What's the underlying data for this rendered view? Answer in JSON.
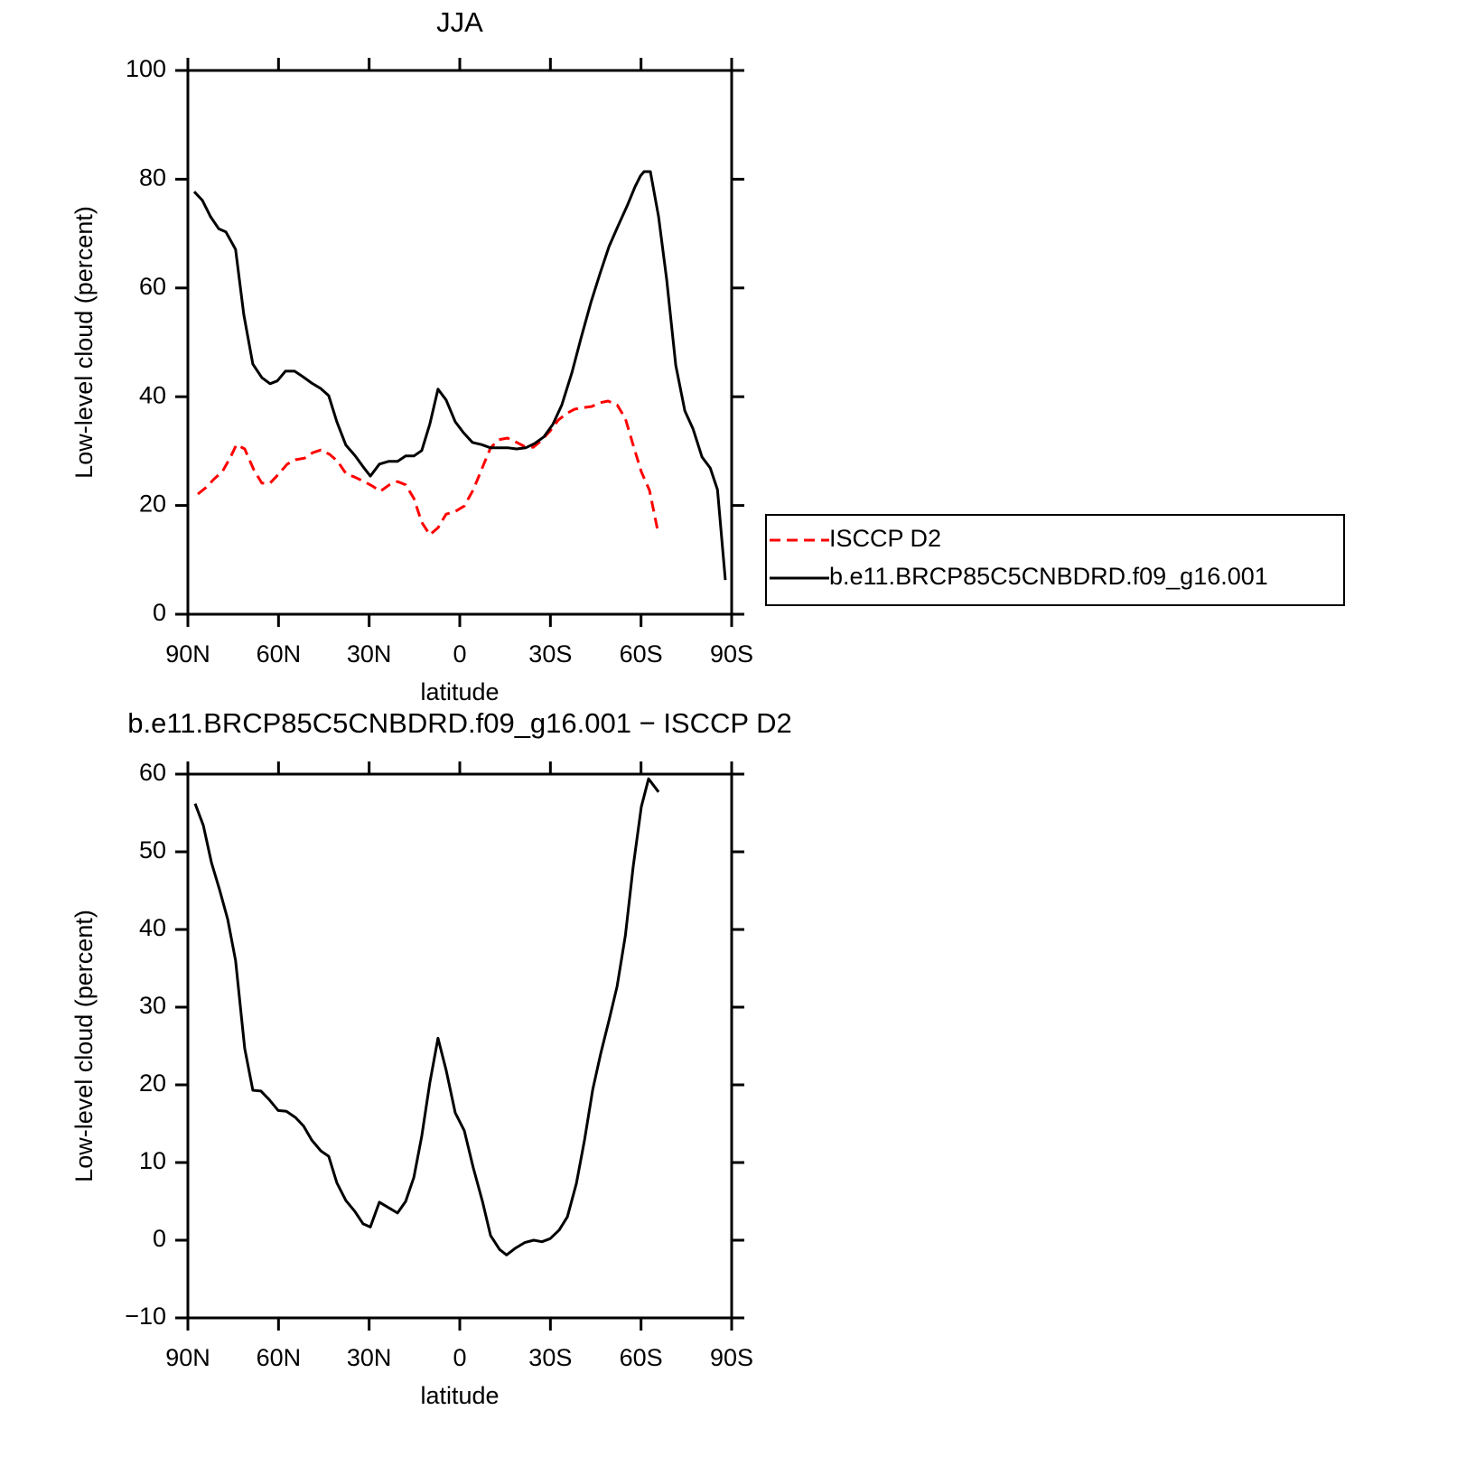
{
  "chart_data": [
    {
      "type": "line",
      "title": "JJA",
      "xlabel": "latitude",
      "ylabel": "Low-level cloud (percent)",
      "xlim": [
        90,
        -90
      ],
      "xticks": [
        {
          "value": 90,
          "label": "90N"
        },
        {
          "value": 60,
          "label": "60N"
        },
        {
          "value": 30,
          "label": "30N"
        },
        0,
        {
          "value": -30,
          "label": "30S"
        },
        {
          "value": -60,
          "label": "60S"
        },
        {
          "value": -90,
          "label": "90S"
        }
      ],
      "ylim": [
        0,
        100
      ],
      "yticks": [
        0,
        20,
        40,
        60,
        80,
        100
      ],
      "legend": "outside right",
      "series": [
        {
          "name": "ISCCP D2",
          "color": "#ff0000",
          "linestyle": "dashed",
          "x": [
            86.7,
            84.0,
            81.3,
            78.6,
            75.9,
            73.9,
            71.2,
            68.2,
            65.5,
            62.8,
            60.1,
            57.1,
            54.4,
            51.4,
            48.7,
            46.0,
            43.1,
            40.4,
            37.7,
            34.7,
            31.7,
            29.0,
            26.3,
            23.3,
            20.6,
            17.9,
            15.2,
            12.6,
            9.9,
            7.2,
            4.5,
            1.5,
            -1.5,
            -4.5,
            -7.2,
            -10.2,
            -12.9,
            -15.8,
            -18.5,
            -21.3,
            -24.3,
            -26.9,
            -29.9,
            -32.6,
            -35.3,
            -38.0,
            -41.0,
            -43.7,
            -46.4,
            -49.1,
            -52.1,
            -54.8,
            -57.4,
            -60.1,
            -62.8,
            -65.5
          ],
          "values": [
            22.1,
            23.3,
            24.9,
            26.2,
            28.9,
            31.2,
            30.4,
            26.6,
            24.1,
            24.1,
            25.7,
            27.6,
            28.4,
            28.7,
            29.7,
            30.2,
            29.4,
            28.1,
            25.9,
            25.2,
            24.4,
            23.6,
            22.6,
            23.8,
            24.4,
            23.8,
            21.3,
            16.9,
            14.6,
            15.9,
            18.4,
            18.9,
            19.9,
            22.9,
            26.6,
            30.6,
            32.1,
            32.4,
            31.7,
            30.9,
            30.7,
            31.9,
            33.7,
            35.7,
            36.9,
            37.7,
            38.0,
            38.2,
            38.9,
            39.2,
            38.5,
            36.0,
            31.1,
            26.2,
            22.8,
            15.4
          ]
        },
        {
          "name": "b.e11.BRCP85C5CNBDRD.f09_g16.001",
          "color": "#000000",
          "linestyle": "solid",
          "x": [
            87.9,
            85.2,
            82.5,
            79.8,
            77.4,
            74.2,
            71.5,
            68.5,
            65.5,
            62.8,
            60.4,
            57.7,
            54.7,
            52.0,
            49.0,
            46.0,
            43.4,
            40.7,
            37.7,
            34.7,
            31.7,
            29.6,
            26.6,
            23.6,
            20.6,
            17.9,
            15.2,
            12.6,
            9.9,
            7.2,
            4.5,
            1.5,
            -1.2,
            -4.2,
            -7.2,
            -10.2,
            -12.9,
            -16.1,
            -18.8,
            -21.8,
            -24.8,
            -27.8,
            -30.8,
            -33.8,
            -37.1,
            -40.1,
            -43.4,
            -46.4,
            -49.4,
            -52.4,
            -55.4,
            -58.0,
            -59.8,
            -61.0,
            -63.1,
            -65.8,
            -68.5,
            -71.5,
            -74.5,
            -77.2,
            -80.2,
            -82.9,
            -85.3,
            -87.9
          ],
          "values": [
            77.7,
            76.1,
            73.1,
            70.9,
            70.3,
            67.1,
            55.1,
            46.0,
            43.5,
            42.4,
            42.9,
            44.7,
            44.7,
            43.7,
            42.5,
            41.5,
            40.2,
            35.4,
            31.1,
            29.2,
            26.9,
            25.4,
            27.6,
            28.1,
            28.1,
            29.1,
            29.1,
            30.1,
            35.0,
            41.4,
            39.4,
            35.4,
            33.4,
            31.6,
            31.2,
            30.6,
            30.6,
            30.6,
            30.4,
            30.6,
            31.4,
            32.6,
            34.9,
            38.5,
            44.4,
            50.7,
            57.3,
            62.6,
            67.6,
            71.4,
            75.1,
            78.6,
            80.6,
            81.4,
            81.4,
            73.1,
            61.5,
            45.8,
            37.4,
            34.1,
            28.9,
            26.9,
            22.9,
            6.3
          ]
        }
      ]
    },
    {
      "type": "line",
      "title": "b.e11.BRCP85C5CNBDRD.f09_g16.001 − ISCCP D2",
      "xlabel": "latitude",
      "ylabel": "Low-level cloud (percent)",
      "xlim": [
        90,
        -90
      ],
      "xticks": [
        {
          "value": 90,
          "label": "90N"
        },
        {
          "value": 60,
          "label": "60N"
        },
        {
          "value": 30,
          "label": "30N"
        },
        0,
        {
          "value": -30,
          "label": "30S"
        },
        {
          "value": -60,
          "label": "60S"
        },
        {
          "value": -90,
          "label": "90S"
        }
      ],
      "ylim": [
        -10,
        60
      ],
      "yticks": [
        {
          "value": -10,
          "label": "−10"
        },
        0,
        10,
        20,
        30,
        40,
        50,
        60
      ],
      "series": [
        {
          "color": "#000000",
          "linestyle": "solid",
          "x": [
            87.6,
            84.9,
            82.2,
            79.5,
            76.8,
            74.2,
            71.2,
            68.5,
            65.8,
            63.1,
            60.1,
            57.4,
            54.4,
            51.7,
            49.0,
            46.0,
            43.4,
            40.7,
            37.7,
            34.7,
            32.0,
            29.6,
            26.6,
            23.6,
            20.6,
            17.9,
            15.2,
            12.6,
            9.9,
            7.2,
            4.5,
            1.5,
            -1.5,
            -4.5,
            -7.5,
            -10.2,
            -13.2,
            -15.5,
            -18.5,
            -21.5,
            -24.5,
            -27.2,
            -29.9,
            -32.9,
            -35.6,
            -38.6,
            -41.3,
            -44.0,
            -46.7,
            -49.4,
            -52.1,
            -54.8,
            -57.4,
            -60.1,
            -62.5,
            -65.8
          ],
          "values": [
            56.2,
            53.4,
            48.6,
            45.1,
            41.3,
            36.0,
            24.7,
            19.3,
            19.2,
            18.1,
            16.7,
            16.6,
            15.8,
            14.7,
            12.9,
            11.5,
            10.8,
            7.4,
            5.1,
            3.7,
            2.1,
            1.7,
            4.9,
            4.2,
            3.5,
            5.0,
            8.1,
            13.4,
            20.3,
            26.0,
            21.9,
            16.4,
            14.1,
            9.3,
            5.0,
            0.6,
            -1.2,
            -1.9,
            -1.0,
            -0.3,
            0.0,
            -0.2,
            0.2,
            1.3,
            3.0,
            7.3,
            12.9,
            19.4,
            24.1,
            28.3,
            32.7,
            39.2,
            48.1,
            55.8,
            59.4,
            57.7
          ]
        }
      ]
    }
  ]
}
